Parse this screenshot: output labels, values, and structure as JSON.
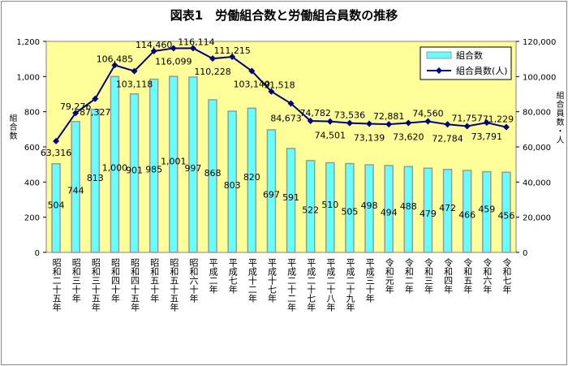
{
  "chart_data": {
    "type": "bar+line",
    "title": "図表1　労働組合数と労働組合員数の推移",
    "ylabel_left": "組合数",
    "ylabel_right": "組合員数・人",
    "ylim_left": [
      0,
      1200
    ],
    "ylim_right": [
      0,
      120000
    ],
    "yticks_left": [
      "0",
      "200",
      "400",
      "600",
      "800",
      "1,000",
      "1,200"
    ],
    "yticks_right": [
      "0",
      "20,000",
      "40,000",
      "60,000",
      "80,000",
      "100,000",
      "120,000"
    ],
    "legend_position": "top-right",
    "grid": false,
    "categories": [
      "昭和二十五年",
      "昭和三十年",
      "昭和三十五年",
      "昭和四十年",
      "昭和四十五年",
      "昭和五十年",
      "昭和五十五年",
      "昭和六十年",
      "平成二年",
      "平成七年",
      "平成十二年",
      "平成十七年",
      "平成二十二年",
      "平成二十七年",
      "平成二十八年",
      "平成二十九年",
      "平成三十年",
      "令和元年",
      "令和二年",
      "令和三年",
      "令和四年",
      "令和五年",
      "令和六年",
      "令和七年"
    ],
    "series": [
      {
        "name": "組合数",
        "type": "bar",
        "axis": "left",
        "color": "#66FFFF",
        "values": [
          504,
          744,
          813,
          1000,
          901,
          985,
          1001,
          997,
          868,
          803,
          820,
          697,
          591,
          522,
          510,
          505,
          498,
          494,
          488,
          479,
          472,
          466,
          459,
          456
        ],
        "labels": [
          "504",
          "744",
          "813",
          "1,000",
          "901",
          "985",
          "1,001",
          "997",
          "868",
          "803",
          "820",
          "697",
          "591",
          "522",
          "510",
          "505",
          "498",
          "494",
          "488",
          "479",
          "472",
          "466",
          "459",
          "456"
        ]
      },
      {
        "name": "組合員数(人)",
        "type": "line",
        "axis": "right",
        "color": "#000080",
        "values": [
          63316,
          79276,
          87327,
          106485,
          103118,
          114460,
          116099,
          116114,
          110228,
          111215,
          103149,
          91518,
          84673,
          74782,
          74501,
          73536,
          73139,
          72881,
          73620,
          74560,
          72784,
          71757,
          73791,
          71229
        ],
        "labels": [
          "63,316",
          "79,276",
          "87,327",
          "106,485",
          "103,118",
          "114,460",
          "116,099",
          "116,114",
          "110,228",
          "111,215",
          "103,149",
          "91,518",
          "84,673",
          "74,782",
          "74,501",
          "73,536",
          "73,139",
          "72,881",
          "73,620",
          "74,560",
          "72,784",
          "71,757",
          "73,791",
          "71,229"
        ]
      }
    ]
  },
  "colors": {
    "plot_background": "#FFFF99",
    "bar_fill": "#66FFFF",
    "bar_stroke": "#999999",
    "line": "#000080"
  }
}
